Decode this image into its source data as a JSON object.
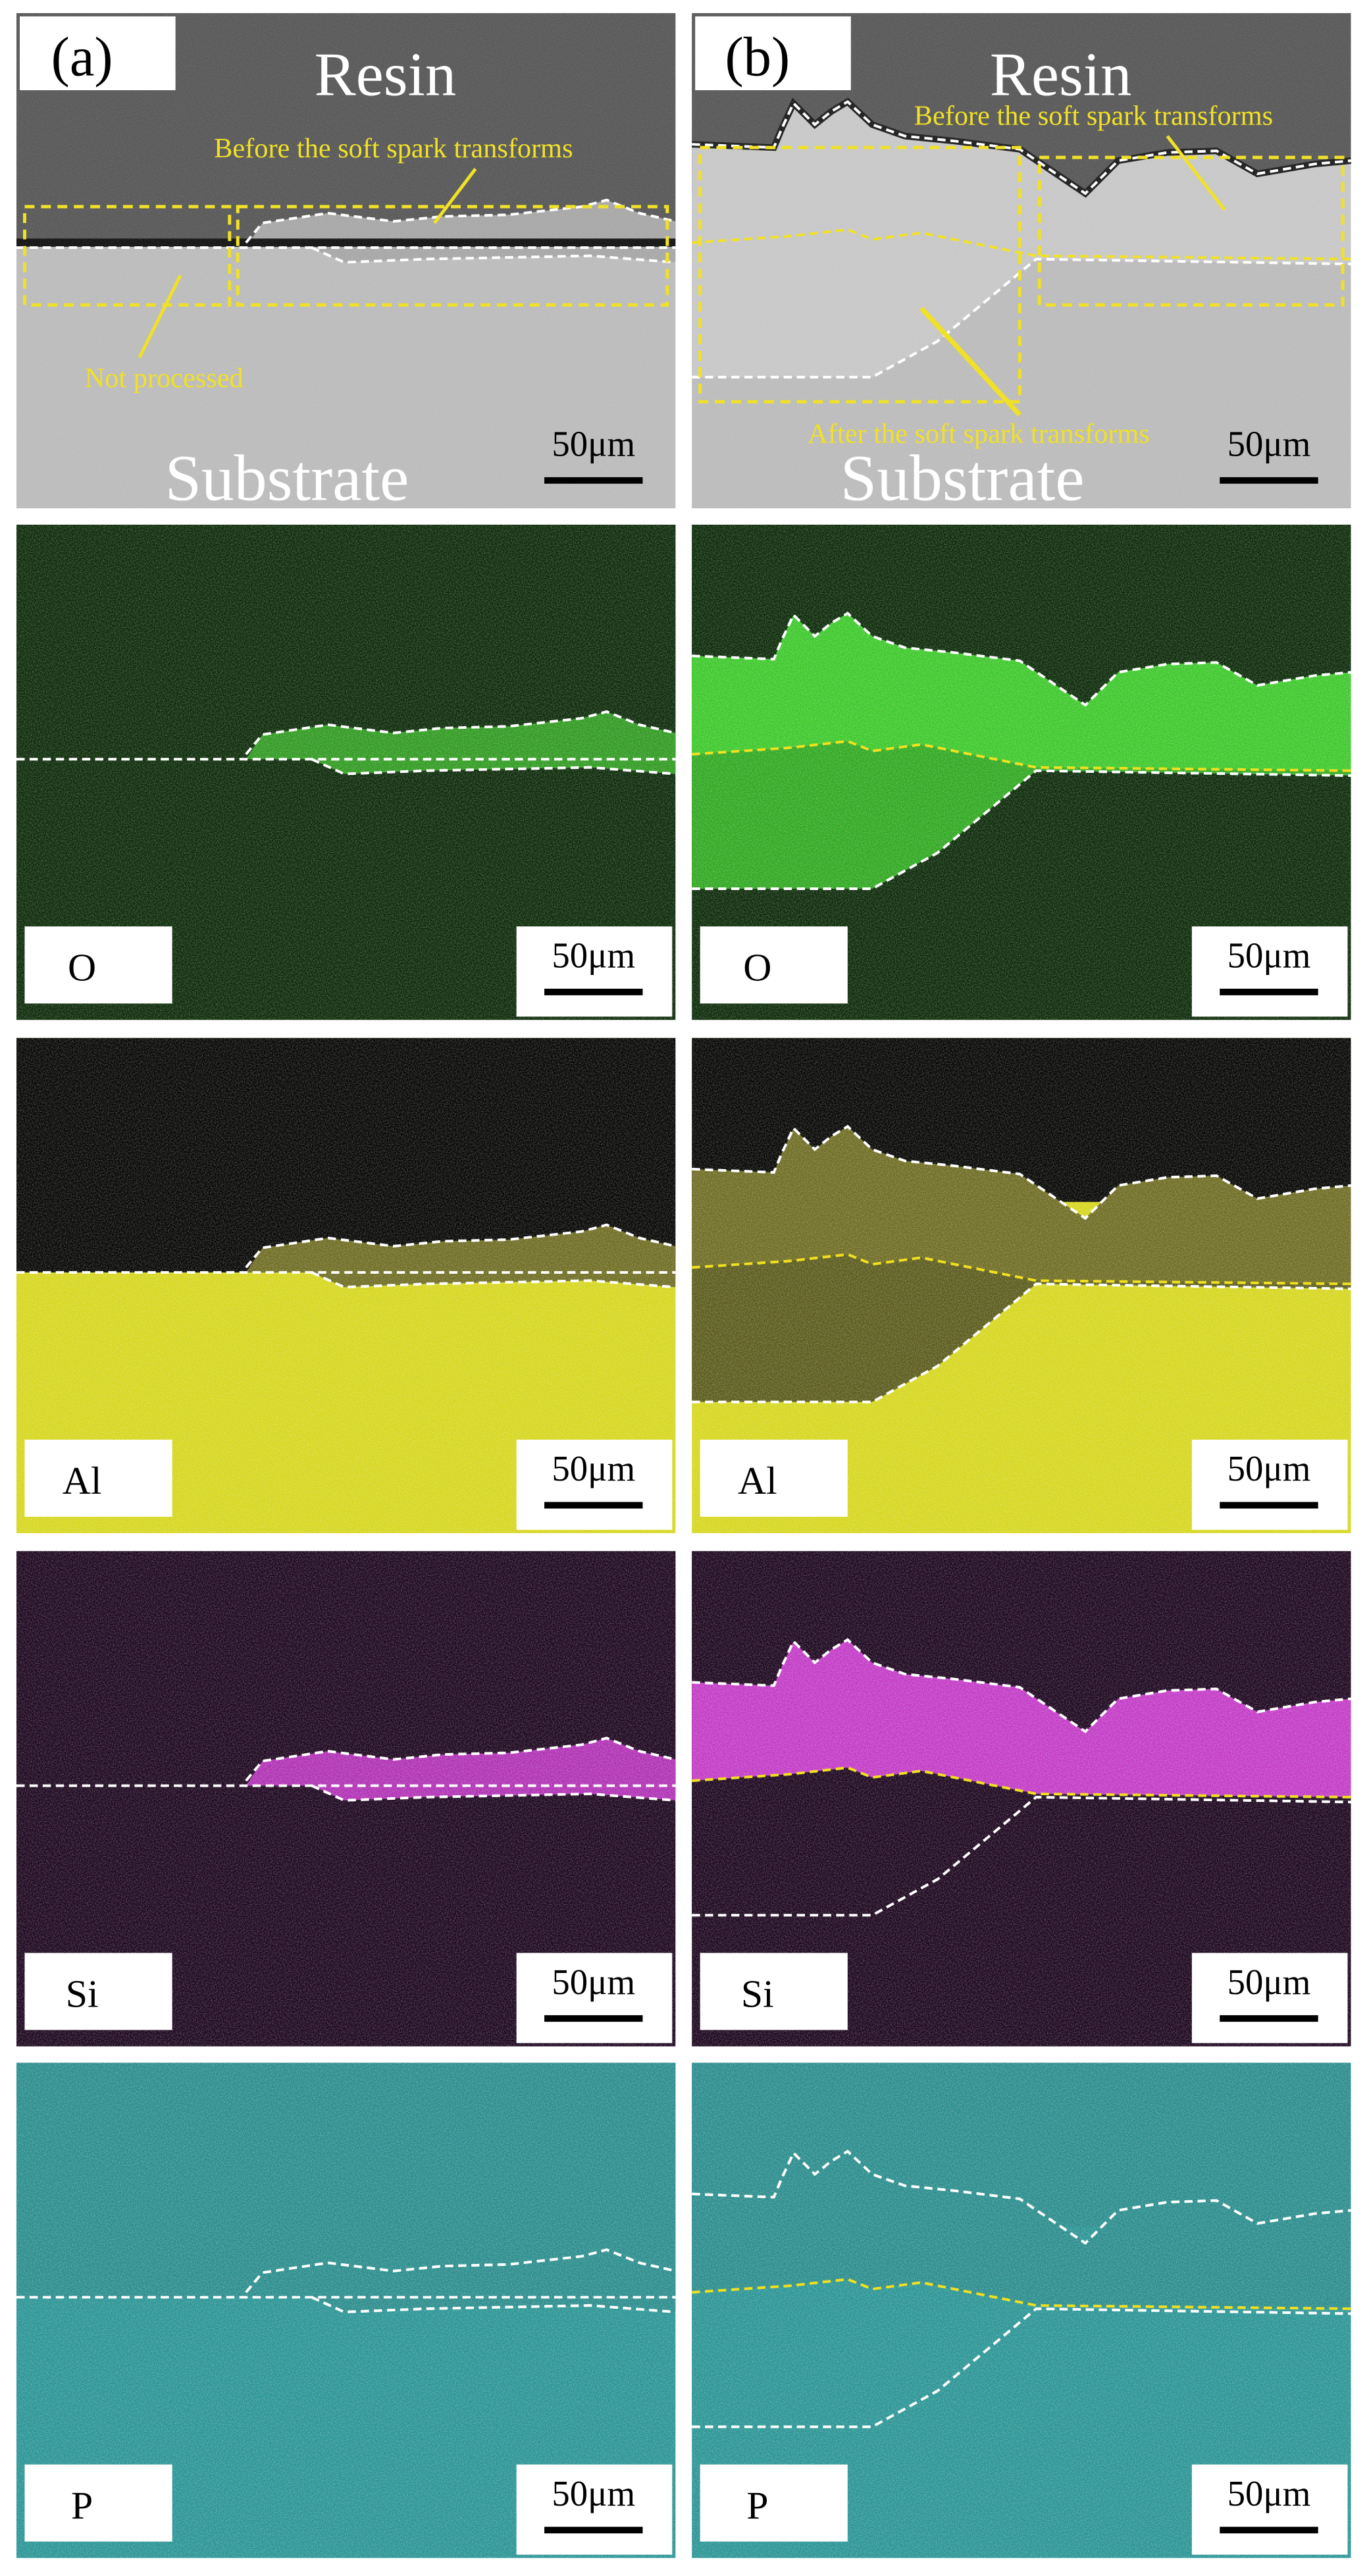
{
  "sem": {
    "panels": [
      {
        "label": "(a)",
        "top": "Resin",
        "bottom": "Substrate",
        "annotations": [
          "Before the soft spark transforms",
          "Not processed"
        ],
        "scale_bar": "50μm"
      },
      {
        "label": "(b)",
        "top": "Resin",
        "bottom": "Substrate",
        "annotations": [
          "Before the soft spark transforms",
          "After the soft spark transforms"
        ],
        "scale_bar": "50μm"
      }
    ]
  },
  "eds_maps": [
    {
      "labels": [
        "O",
        "O"
      ],
      "scale_bars": [
        "50μm",
        "50μm"
      ]
    },
    {
      "labels": [
        "Al",
        "Al"
      ],
      "scale_bars": [
        "50μm",
        "50μm"
      ]
    },
    {
      "labels": [
        "Si",
        "Si"
      ],
      "scale_bars": [
        "50μm",
        "50μm"
      ]
    },
    {
      "labels": [
        "P",
        "P"
      ],
      "scale_bars": [
        "50μm",
        "50μm"
      ]
    }
  ]
}
